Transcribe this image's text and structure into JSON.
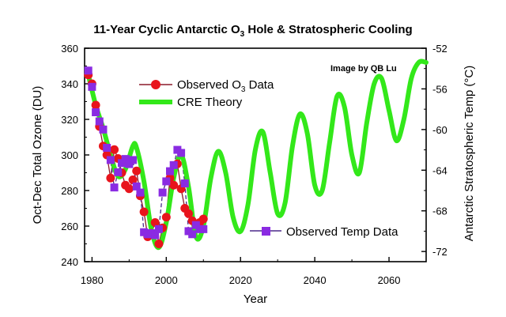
{
  "chart_data": {
    "type": "line",
    "title_main": "11-Year Cyclic Antarctic O",
    "title_sub": "3",
    "title_rest": " Hole & Stratospheric Cooling",
    "credit": "Image by QB Lu",
    "xlabel": "Year",
    "ylabel_left": "Oct-Dec Total Ozone (DU)",
    "ylabel_right": "Antarctic Stratospheric Temp (°C)",
    "xlim": [
      1978,
      2070
    ],
    "ylim_left": [
      240,
      360
    ],
    "ylim_right": [
      -73,
      -52
    ],
    "x_ticks": [
      "1980",
      "2000",
      "2020",
      "2040",
      "2060"
    ],
    "x_tick_values": [
      1980,
      2000,
      2020,
      2040,
      2060
    ],
    "y_left_ticks": [
      "240",
      "260",
      "280",
      "300",
      "320",
      "340",
      "360"
    ],
    "y_left_tick_values": [
      240,
      260,
      280,
      300,
      320,
      340,
      360
    ],
    "y_right_ticks": [
      "-52",
      "-56",
      "-60",
      "-64",
      "-68",
      "-72"
    ],
    "y_right_tick_values": [
      -52,
      -56,
      -60,
      -64,
      -68,
      -72
    ],
    "legend": {
      "ozone_main": "Observed O",
      "ozone_sub": "3",
      "ozone_rest": " Data",
      "cre": "CRE Theory",
      "temp": "Observed Temp Data"
    },
    "colors": {
      "ozone": "#e8141c",
      "ozone_line": "#8b1a2a",
      "cre": "#33e81a",
      "temp": "#8a2be2",
      "temp_line": "#4b2a8a"
    },
    "series": [
      {
        "name": "CRE Theory",
        "axis": "left",
        "x": [
          1979,
          1981,
          1983,
          1985,
          1987,
          1989,
          1991,
          1992,
          1994,
          1996,
          1998,
          2000,
          2002,
          2004,
          2006,
          2008,
          2010,
          2012,
          2014,
          2016,
          2018,
          2020,
          2022,
          2024,
          2026,
          2028,
          2030,
          2032,
          2034,
          2036,
          2038,
          2040,
          2042,
          2044,
          2046,
          2048,
          2050,
          2052,
          2054,
          2056,
          2058,
          2060,
          2062,
          2064,
          2066,
          2068,
          2070
        ],
        "values": [
          345,
          328,
          315,
          300,
          288,
          292,
          305,
          304,
          285,
          258,
          248,
          262,
          287,
          300,
          282,
          254,
          260,
          287,
          302,
          290,
          265,
          257,
          272,
          303,
          313,
          290,
          267,
          273,
          305,
          323,
          312,
          283,
          280,
          307,
          333,
          327,
          300,
          290,
          318,
          340,
          343,
          325,
          308,
          320,
          343,
          352,
          352
        ]
      },
      {
        "name": "Observed O3 Data",
        "axis": "left",
        "x": [
          1979,
          1980,
          1981,
          1982,
          1983,
          1984,
          1985,
          1986,
          1987,
          1988,
          1989,
          1990,
          1991,
          1992,
          1993,
          1994,
          1995,
          1996,
          1997,
          1998,
          1999,
          2000,
          2001,
          2002,
          2003,
          2004,
          2005,
          2006,
          2007,
          2008,
          2009,
          2010
        ],
        "values": [
          345,
          340,
          328,
          316,
          305,
          300,
          287,
          303,
          298,
          290,
          283,
          281,
          286,
          291,
          277,
          268,
          254,
          256,
          262,
          250,
          259,
          265,
          287,
          283,
          295,
          281,
          270,
          267,
          263,
          261,
          262,
          264
        ]
      },
      {
        "name": "Observed Temp Data",
        "axis": "right",
        "x": [
          1979,
          1980,
          1981,
          1982,
          1983,
          1984,
          1985,
          1986,
          1987,
          1988,
          1989,
          1990,
          1991,
          1992,
          1993,
          1994,
          1995,
          1996,
          1997,
          1998,
          1999,
          2000,
          2001,
          2002,
          2003,
          2004,
          2005,
          2006,
          2007,
          2008,
          2009,
          2010
        ],
        "values": [
          -54.2,
          -55.8,
          -58.3,
          -59.2,
          -60.0,
          -61.8,
          -63.0,
          -65.7,
          -64.2,
          -63.3,
          -62.9,
          -63.4,
          -63.0,
          -65.6,
          -66.2,
          -70.1,
          -70.3,
          -70.2,
          -70.4,
          -69.8,
          -66.2,
          -65.1,
          -64.1,
          -63.5,
          -62.0,
          -62.3,
          -65.3,
          -70.0,
          -70.3,
          -69.4,
          -69.8,
          -69.8
        ]
      }
    ]
  }
}
